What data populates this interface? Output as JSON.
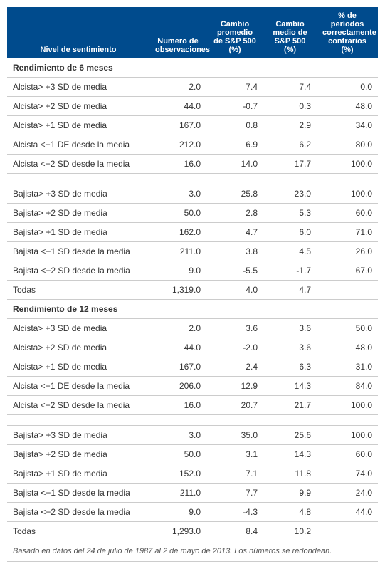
{
  "headers": {
    "level": "Nivel de sentimiento",
    "obs": "Numero de observaciones",
    "avg": "Cambio promedio de S&P 500 (%)",
    "med": "Cambio medio de S&P 500 (%)",
    "pct": "% de períodos correctamente contrarios (%)"
  },
  "sections": [
    {
      "title": "Rendimiento de 6 meses",
      "groups": [
        [
          {
            "label": "Alcista> +3 SD de media",
            "obs": "2.0",
            "avg": "7.4",
            "med": "7.4",
            "pct": "0.0"
          },
          {
            "label": "Alcista> +2 SD de media",
            "obs": "44.0",
            "avg": "-0.7",
            "med": "0.3",
            "pct": "48.0"
          },
          {
            "label": "Alcista> +1 SD de media",
            "obs": "167.0",
            "avg": "0.8",
            "med": "2.9",
            "pct": "34.0"
          },
          {
            "label": "Alcista <−1 DE desde la media",
            "obs": "212.0",
            "avg": "6.9",
            "med": "6.2",
            "pct": "80.0"
          },
          {
            "label": "Alcista <−2 SD desde la media",
            "obs": "16.0",
            "avg": "14.0",
            "med": "17.7",
            "pct": "100.0"
          }
        ],
        [
          {
            "label": "Bajista> +3 SD de media",
            "obs": "3.0",
            "avg": "25.8",
            "med": "23.0",
            "pct": "100.0"
          },
          {
            "label": "Bajista> +2 SD de media",
            "obs": "50.0",
            "avg": "2.8",
            "med": "5.3",
            "pct": "60.0"
          },
          {
            "label": "Bajista> +1 SD de media",
            "obs": "162.0",
            "avg": "4.7",
            "med": "6.0",
            "pct": "71.0"
          },
          {
            "label": "Bajista <−1 SD desde la media",
            "obs": "211.0",
            "avg": "3.8",
            "med": "4.5",
            "pct": "26.0"
          },
          {
            "label": "Bajista <−2 SD desde la media",
            "obs": "9.0",
            "avg": "-5.5",
            "med": "-1.7",
            "pct": "67.0"
          },
          {
            "label": "Todas",
            "obs": "1,319.0",
            "avg": "4.0",
            "med": "4.7",
            "pct": ""
          }
        ]
      ]
    },
    {
      "title": "Rendimiento de 12 meses",
      "groups": [
        [
          {
            "label": "Alcista> +3 SD de media",
            "obs": "2.0",
            "avg": "3.6",
            "med": "3.6",
            "pct": "50.0"
          },
          {
            "label": "Alcista> +2 SD de media",
            "obs": "44.0",
            "avg": "-2.0",
            "med": "3.6",
            "pct": "48.0"
          },
          {
            "label": "Alcista> +1 SD de media",
            "obs": "167.0",
            "avg": "2.4",
            "med": "6.3",
            "pct": "31.0"
          },
          {
            "label": "Alcista <−1 DE desde la media",
            "obs": "206.0",
            "avg": "12.9",
            "med": "14.3",
            "pct": "84.0"
          },
          {
            "label": "Alcista <−2 SD desde la media",
            "obs": "16.0",
            "avg": "20.7",
            "med": "21.7",
            "pct": "100.0"
          }
        ],
        [
          {
            "label": "Bajista> +3 SD de media",
            "obs": "3.0",
            "avg": "35.0",
            "med": "25.6",
            "pct": "100.0"
          },
          {
            "label": "Bajista> +2 SD de media",
            "obs": "50.0",
            "avg": "3.1",
            "med": "14.3",
            "pct": "60.0"
          },
          {
            "label": "Bajista> +1 SD de media",
            "obs": "152.0",
            "avg": "7.1",
            "med": "11.8",
            "pct": "74.0"
          },
          {
            "label": "Bajista <−1 SD desde la media",
            "obs": "211.0",
            "avg": "7.7",
            "med": "9.9",
            "pct": "24.0"
          },
          {
            "label": "Bajista <−2 SD desde la media",
            "obs": "9.0",
            "avg": "-4.3",
            "med": "4.8",
            "pct": "44.0"
          },
          {
            "label": "Todas",
            "obs": "1,293.0",
            "avg": "8.4",
            "med": "10.2",
            "pct": ""
          }
        ]
      ]
    }
  ],
  "footnote": "Basado en datos del 24 de julio de 1987 al 2 de mayo de 2013. Los números se redondean.",
  "style": {
    "header_bg": "#004b8d",
    "header_fg": "#ffffff",
    "border_color": "#cccccc",
    "font_family": "Arial, sans-serif",
    "body_fontsize": 12,
    "header_fontsize": 11
  }
}
